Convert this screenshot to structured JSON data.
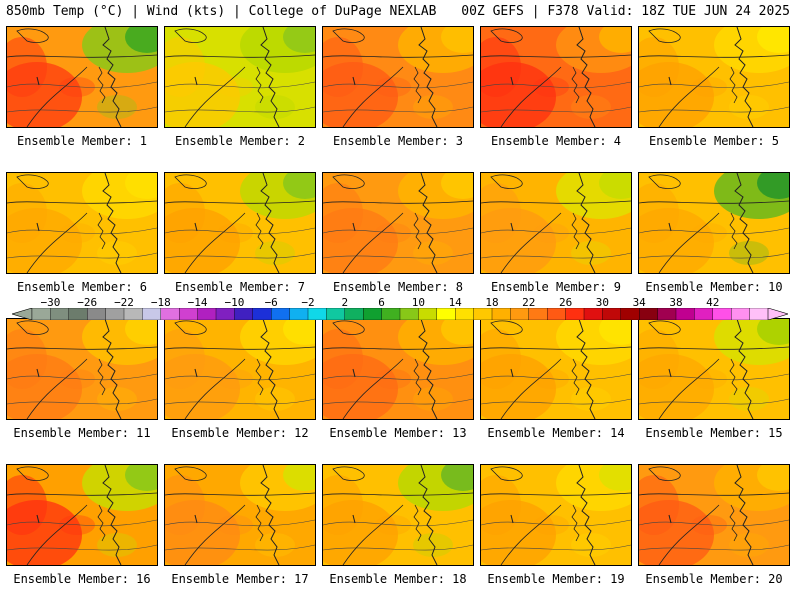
{
  "header": {
    "left": "850mb Temp (°C) | Wind (kts) | College of DuPage NEXLAB",
    "right": "00Z GEFS | F378 Valid: 18Z TUE JUN 24 2025"
  },
  "members": [
    {
      "label": "Ensemble Member: 1",
      "base": "#ff9a10",
      "warm": "#ff3a10",
      "cool": "#8cc818",
      "cool2": "#40a820"
    },
    {
      "label": "Ensemble Member: 2",
      "base": "#d8e000",
      "warm": "#ffc800",
      "cool": "#b8d800",
      "cool2": "#90c818"
    },
    {
      "label": "Ensemble Member: 3",
      "base": "#ff8a14",
      "warm": "#ff5a14",
      "cool": "#ffb000",
      "cool2": "#ffc000"
    },
    {
      "label": "Ensemble Member: 4",
      "base": "#ff6a14",
      "warm": "#ff3010",
      "cool": "#ff9010",
      "cool2": "#ffb000"
    },
    {
      "label": "Ensemble Member: 5",
      "base": "#ffc000",
      "warm": "#ffa000",
      "cool": "#ffd800",
      "cool2": "#ffe800"
    },
    {
      "label": "Ensemble Member: 6",
      "base": "#ffc000",
      "warm": "#ffa800",
      "cool": "#ffd800",
      "cool2": "#ffe000"
    },
    {
      "label": "Ensemble Member: 7",
      "base": "#ffc000",
      "warm": "#ffa000",
      "cool": "#c0d800",
      "cool2": "#8cc818"
    },
    {
      "label": "Ensemble Member: 8",
      "base": "#ff9a10",
      "warm": "#ff7a14",
      "cool": "#ffb400",
      "cool2": "#ffc800"
    },
    {
      "label": "Ensemble Member: 9",
      "base": "#ffb400",
      "warm": "#ff9a10",
      "cool": "#e0e000",
      "cool2": "#c8dc00"
    },
    {
      "label": "Ensemble Member: 10",
      "base": "#ffc000",
      "warm": "#ffa800",
      "cool": "#68b81c",
      "cool2": "#2a9828"
    },
    {
      "label": "Ensemble Member: 11",
      "base": "#ff9a10",
      "warm": "#ff7a14",
      "cool": "#ffc000",
      "cool2": "#ffd000"
    },
    {
      "label": "Ensemble Member: 12",
      "base": "#ffb400",
      "warm": "#ff9a10",
      "cool": "#ffd400",
      "cool2": "#ffe000"
    },
    {
      "label": "Ensemble Member: 13",
      "base": "#ff9010",
      "warm": "#ff6a14",
      "cool": "#ffb000",
      "cool2": "#ffc400"
    },
    {
      "label": "Ensemble Member: 14",
      "base": "#ffc000",
      "warm": "#ffa000",
      "cool": "#ffd800",
      "cool2": "#ffe400"
    },
    {
      "label": "Ensemble Member: 15",
      "base": "#ffc000",
      "warm": "#ffa800",
      "cool": "#d8e000",
      "cool2": "#a8d000"
    },
    {
      "label": "Ensemble Member: 16",
      "base": "#ffa000",
      "warm": "#ff3010",
      "cool": "#c8dc00",
      "cool2": "#8cc818"
    },
    {
      "label": "Ensemble Member: 17",
      "base": "#ffa800",
      "warm": "#ff8a14",
      "cool": "#ffc800",
      "cool2": "#d8e000"
    },
    {
      "label": "Ensemble Member: 18",
      "base": "#ffc000",
      "warm": "#ffa000",
      "cool": "#b8d800",
      "cool2": "#70b820"
    },
    {
      "label": "Ensemble Member: 19",
      "base": "#ffc000",
      "warm": "#ffa000",
      "cool": "#ffd800",
      "cool2": "#e0e000"
    },
    {
      "label": "Ensemble Member: 20",
      "base": "#ff9a10",
      "warm": "#ff5a14",
      "cool": "#ffb000",
      "cool2": "#ffc400"
    }
  ],
  "colorbar": {
    "labels": [
      "−30",
      "−26",
      "−22",
      "−18",
      "−14",
      "−10",
      "−6",
      "−2",
      "2",
      "6",
      "10",
      "14",
      "18",
      "22",
      "26",
      "30",
      "34",
      "38",
      "42"
    ],
    "colors": [
      "#9aa898",
      "#7f8f7f",
      "#6c7c6c",
      "#8a8a8a",
      "#a0a0a0",
      "#b8b8b8",
      "#c8c8e8",
      "#e070e0",
      "#d040d0",
      "#b020c0",
      "#8020c0",
      "#4020c0",
      "#1c30d8",
      "#1070f0",
      "#10b0f0",
      "#10d8e8",
      "#10c8a0",
      "#10b060",
      "#10a030",
      "#40b020",
      "#88c818",
      "#c8dc00",
      "#ffff00",
      "#ffe000",
      "#ffc800",
      "#ffb000",
      "#ff9a10",
      "#ff7a14",
      "#ff5a14",
      "#ff3010",
      "#e01010",
      "#c00808",
      "#a00000",
      "#880010",
      "#a00050",
      "#c00090",
      "#e020c0",
      "#ff50e8",
      "#ff90f0",
      "#ffc0f8"
    ]
  }
}
